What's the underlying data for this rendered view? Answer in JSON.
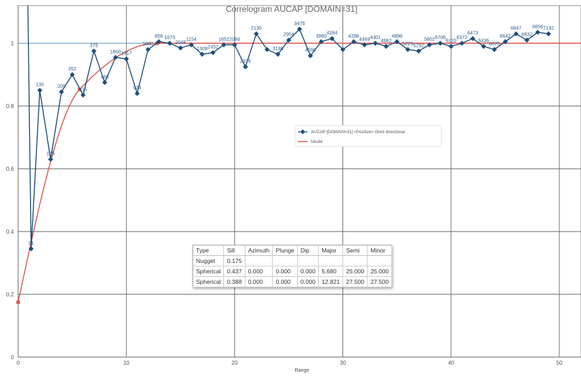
{
  "chart_data": {
    "type": "line",
    "title": "Correlogram AUCAP [DOMAIN=31]",
    "xlabel": "Range",
    "ylabel": "",
    "xlim": [
      0,
      52
    ],
    "ylim": [
      0,
      1.12
    ],
    "x_ticks": [
      0,
      10,
      20,
      30,
      40,
      50
    ],
    "y_ticks": [
      0,
      0.2,
      0.4,
      0.6,
      0.8,
      1
    ],
    "y_tick_labels": [
      "0",
      "0.2",
      "0.4",
      "0.6",
      "0.8",
      "1"
    ],
    "grid": true,
    "sill_line": 1,
    "legend_position": "center-right",
    "series": [
      {
        "name": "AUCAP [DOMAIN=31] <Positive> Omni directional",
        "color": "#1f4e79",
        "marker": "diamond",
        "x": [
          1.2,
          2,
          3,
          4,
          5,
          6,
          7,
          8,
          9,
          10,
          11,
          12,
          13,
          14,
          15,
          16,
          17,
          18,
          19,
          20,
          21,
          22,
          23,
          24,
          25,
          26,
          27,
          28,
          29,
          30,
          31,
          32,
          33,
          34,
          35,
          36,
          37,
          38,
          39,
          40,
          41,
          42,
          43,
          44,
          45,
          46,
          47,
          48,
          49
        ],
        "y": [
          0.345,
          0.85,
          0.63,
          0.845,
          0.9,
          0.835,
          0.975,
          0.875,
          0.955,
          0.95,
          0.84,
          0.98,
          1.005,
          1.0,
          0.985,
          0.995,
          0.965,
          0.97,
          0.995,
          0.995,
          0.925,
          1.03,
          0.98,
          0.965,
          1.01,
          1.045,
          0.96,
          1.005,
          1.015,
          0.98,
          1.005,
          0.995,
          1.0,
          0.99,
          1.005,
          0.98,
          0.975,
          0.995,
          1.0,
          0.99,
          1.0,
          1.015,
          0.99,
          0.98,
          1.005,
          1.03,
          1.01,
          1.035,
          1.03
        ],
        "labels": [
          "31",
          "135",
          "165",
          "209",
          "352",
          "415",
          "375",
          "466",
          "1600",
          "1917",
          "936",
          "1005",
          "856",
          "1073",
          "2048",
          "1154",
          "1308",
          "2452",
          "1652",
          "2084",
          "2376",
          "2130",
          "",
          "3196",
          "2954",
          "3476",
          "4698",
          "3960",
          "4284",
          "",
          "4288",
          "4469",
          "4301",
          "4862",
          "4898",
          "5225",
          "5292",
          "5802",
          "5706",
          "6120",
          "6372",
          "6473",
          "5336",
          "6675",
          "6642",
          "6847",
          "6832",
          "6856",
          "7192"
        ]
      },
      {
        "name": "Model",
        "color": "#d9534f",
        "model": {
          "nugget": 0.175,
          "structures": [
            {
              "type": "Spherical",
              "sill": 0.437,
              "range": 5.68
            },
            {
              "type": "Spherical",
              "sill": 0.388,
              "range": 12.821
            }
          ]
        }
      }
    ]
  },
  "table": {
    "headers": [
      "Type",
      "Sill",
      "Azimuth",
      "Plunge",
      "Dip",
      "Major",
      "Semi",
      "Minor"
    ],
    "rows": [
      [
        "Nugget",
        "0.175",
        "",
        "",
        "",
        "",
        "",
        ""
      ],
      [
        "Spherical",
        "0.437",
        "0.000",
        "0.000",
        "0.000",
        "5.680",
        "25.000",
        "25.000"
      ],
      [
        "Spherical",
        "0.388",
        "0.000",
        "0.000",
        "0.000",
        "12.821",
        "27.500",
        "27.500"
      ]
    ]
  }
}
